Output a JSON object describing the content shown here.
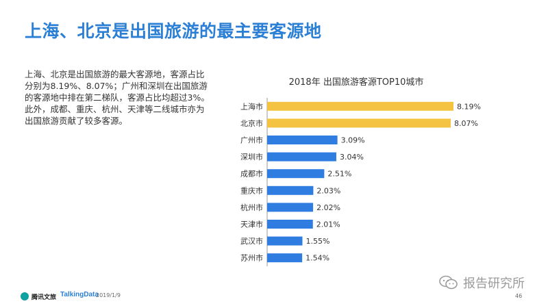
{
  "title": "上海、北京是出国旅游的最主要客源地",
  "body_text": "上海、北京是出国旅游的最大客源地，客源占比分别为8.19%、8.07%；广州和深圳在出国旅游的客源地中排在第二梯队，客源占比均超过3%。此外，成都、重庆、杭州、天津等二线城市亦为出国旅游贡献了较多客源。",
  "chart_data": {
    "type": "bar",
    "orientation": "horizontal",
    "title": "2018年 出国旅游客源TOP10城市",
    "categories": [
      "上海市",
      "北京市",
      "广州市",
      "深圳市",
      "成都市",
      "重庆市",
      "杭州市",
      "天津市",
      "武汉市",
      "苏州市"
    ],
    "values": [
      8.19,
      8.07,
      3.09,
      3.04,
      2.51,
      2.03,
      2.02,
      2.01,
      1.55,
      1.54
    ],
    "labels": [
      "8.19%",
      "8.07%",
      "3.09%",
      "3.04%",
      "2.51%",
      "2.03%",
      "2.02%",
      "2.01%",
      "1.55%",
      "1.54%"
    ],
    "unit": "%",
    "xlim": [
      0,
      8.19
    ],
    "grid": false,
    "colors": {
      "highlight": "#f5c342",
      "default": "#2f7de1",
      "axis": "#999999"
    },
    "highlight_count": 2
  },
  "footer": {
    "logo_text": "腾讯文旅",
    "brand": "TalkingData",
    "date": "2019/1/9",
    "page": "46"
  },
  "watermark": {
    "text": "报告研究所",
    "icon": "wechat-icon"
  }
}
